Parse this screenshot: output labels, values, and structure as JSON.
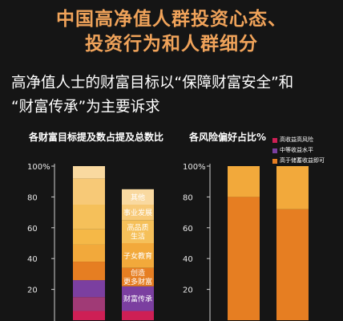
{
  "header": {
    "title_line1": "中国高净值人群投资心态、",
    "title_line2": "投资行为和人群细分",
    "subtitle_line1": "高净值人士的财富目标以“保障财富安全”和",
    "subtitle_line2": "“财富传承”为主要诉求"
  },
  "chart_data": [
    {
      "type": "bar",
      "title": "各财富目标提及数占提及总数比",
      "ylim": [
        0,
        100
      ],
      "y_ticks_visible": [
        "100%",
        "80",
        "60",
        "40",
        "20"
      ],
      "bars": [
        {
          "segments": [
            {
              "value": 6,
              "color": "#ce1f55"
            },
            {
              "value": 9,
              "color": "#a03a76"
            },
            {
              "value": 11,
              "color": "#7b3fa0"
            },
            {
              "value": 12,
              "color": "#e67e22"
            },
            {
              "value": 11,
              "color": "#f2a93b"
            },
            {
              "value": 10,
              "color": "#f5b847"
            },
            {
              "value": 16,
              "color": "#f5c05a"
            },
            {
              "value": 17,
              "color": "#f7c977"
            },
            {
              "value": 8,
              "color": "#f9d9a0"
            }
          ]
        },
        {
          "segments": [
            {
              "value": 6,
              "color": "#ce1f55"
            },
            {
              "value": 16,
              "color": "#7b3fa0",
              "label": "财富传承"
            },
            {
              "value": 12,
              "color": "#e67e22",
              "label_lines": [
                "创造",
                "更多财富"
              ]
            },
            {
              "value": 16,
              "color": "#f2a93b",
              "label": "子女教育"
            },
            {
              "value": 15,
              "color": "#f5c05a",
              "label_lines": [
                "高品质",
                "生活"
              ]
            },
            {
              "value": 10,
              "color": "#f7c977",
              "label_lines": [
                "事业发展"
              ]
            },
            {
              "value": 10,
              "color": "#f9d9a0",
              "label_lines": [
                "其他"
              ]
            }
          ]
        }
      ]
    },
    {
      "type": "bar",
      "title": "各风险偏好占比%",
      "ylim": [
        0,
        100
      ],
      "y_ticks_visible": [
        "100%",
        "80",
        "60",
        "40",
        "20"
      ],
      "legend": [
        {
          "label": "高收益高风险",
          "color": "#ce1f55"
        },
        {
          "label": "中等收益水平",
          "color": "#7b3fa0"
        },
        {
          "label": "高于储蓄收益即可",
          "color": "#e67e22"
        }
      ],
      "bars": [
        {
          "segments": [
            {
              "value": 80,
              "color": "#e67e22"
            },
            {
              "value": 20,
              "color": "#f2a93b"
            }
          ]
        },
        {
          "segments": [
            {
              "value": 72,
              "color": "#e67e22"
            },
            {
              "value": 28,
              "color": "#f2a93b"
            }
          ]
        }
      ]
    }
  ]
}
